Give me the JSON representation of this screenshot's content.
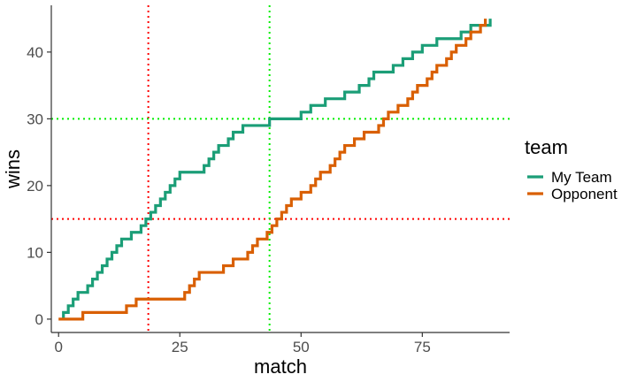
{
  "chart_data": {
    "type": "line",
    "line_shape": "step",
    "xlabel": "match",
    "ylabel": "wins",
    "xlim": [
      -1.5,
      93
    ],
    "ylim": [
      -2,
      47
    ],
    "x_ticks": [
      0,
      25,
      50,
      75
    ],
    "y_ticks": [
      0,
      10,
      20,
      30,
      40
    ],
    "grid": false,
    "legend": {
      "title": "team",
      "position": "right"
    },
    "series": [
      {
        "name": "My Team",
        "color": "#1b9e77",
        "points": [
          [
            1,
            0
          ],
          [
            1,
            1
          ],
          [
            2,
            1
          ],
          [
            2,
            2
          ],
          [
            3,
            2
          ],
          [
            3,
            3
          ],
          [
            4,
            3
          ],
          [
            4,
            4
          ],
          [
            6,
            4
          ],
          [
            6,
            5
          ],
          [
            7,
            5
          ],
          [
            7,
            6
          ],
          [
            8,
            6
          ],
          [
            8,
            7
          ],
          [
            9,
            7
          ],
          [
            9,
            8
          ],
          [
            10,
            8
          ],
          [
            10,
            9
          ],
          [
            11,
            9
          ],
          [
            11,
            10
          ],
          [
            12,
            10
          ],
          [
            12,
            11
          ],
          [
            13,
            11
          ],
          [
            13,
            12
          ],
          [
            15,
            12
          ],
          [
            15,
            13
          ],
          [
            17,
            13
          ],
          [
            17,
            14
          ],
          [
            18,
            14
          ],
          [
            18,
            15
          ],
          [
            19,
            15
          ],
          [
            19,
            16
          ],
          [
            20,
            16
          ],
          [
            20,
            17
          ],
          [
            21,
            17
          ],
          [
            21,
            18
          ],
          [
            22,
            18
          ],
          [
            22,
            19
          ],
          [
            23,
            19
          ],
          [
            23,
            20
          ],
          [
            24,
            20
          ],
          [
            24,
            21
          ],
          [
            25,
            21
          ],
          [
            25,
            22
          ],
          [
            30,
            22
          ],
          [
            30,
            23
          ],
          [
            31,
            23
          ],
          [
            31,
            24
          ],
          [
            32,
            24
          ],
          [
            32,
            25
          ],
          [
            33,
            25
          ],
          [
            33,
            26
          ],
          [
            35,
            26
          ],
          [
            35,
            27
          ],
          [
            36,
            27
          ],
          [
            36,
            28
          ],
          [
            38,
            28
          ],
          [
            38,
            29
          ],
          [
            43.5,
            29
          ],
          [
            43.5,
            30
          ],
          [
            50,
            30
          ],
          [
            50,
            31
          ],
          [
            52,
            31
          ],
          [
            52,
            32
          ],
          [
            55,
            32
          ],
          [
            55,
            33
          ],
          [
            59,
            33
          ],
          [
            59,
            34
          ],
          [
            62,
            34
          ],
          [
            62,
            35
          ],
          [
            64,
            35
          ],
          [
            64,
            36
          ],
          [
            65,
            36
          ],
          [
            65,
            37
          ],
          [
            69,
            37
          ],
          [
            69,
            38
          ],
          [
            71,
            38
          ],
          [
            71,
            39
          ],
          [
            73,
            39
          ],
          [
            73,
            40
          ],
          [
            75,
            40
          ],
          [
            75,
            41
          ],
          [
            78,
            41
          ],
          [
            78,
            42
          ],
          [
            83,
            42
          ],
          [
            83,
            43
          ],
          [
            85,
            43
          ],
          [
            85,
            44
          ],
          [
            89,
            44
          ],
          [
            89,
            45
          ]
        ]
      },
      {
        "name": "Opponent",
        "color": "#d95f02",
        "points": [
          [
            0,
            0
          ],
          [
            5,
            0
          ],
          [
            5,
            1
          ],
          [
            14,
            1
          ],
          [
            14,
            2
          ],
          [
            16,
            2
          ],
          [
            16,
            3
          ],
          [
            26,
            3
          ],
          [
            26,
            4
          ],
          [
            27,
            4
          ],
          [
            27,
            5
          ],
          [
            28,
            5
          ],
          [
            28,
            6
          ],
          [
            29,
            6
          ],
          [
            29,
            7
          ],
          [
            34,
            7
          ],
          [
            34,
            8
          ],
          [
            36,
            8
          ],
          [
            36,
            9
          ],
          [
            39,
            9
          ],
          [
            39,
            10
          ],
          [
            40,
            10
          ],
          [
            40,
            11
          ],
          [
            41,
            11
          ],
          [
            41,
            12
          ],
          [
            43,
            12
          ],
          [
            43,
            13
          ],
          [
            44,
            13
          ],
          [
            44,
            14
          ],
          [
            45,
            14
          ],
          [
            45,
            15
          ],
          [
            46,
            15
          ],
          [
            46,
            16
          ],
          [
            47,
            16
          ],
          [
            47,
            17
          ],
          [
            48,
            17
          ],
          [
            48,
            18
          ],
          [
            50,
            18
          ],
          [
            50,
            19
          ],
          [
            52,
            19
          ],
          [
            52,
            20
          ],
          [
            53,
            20
          ],
          [
            53,
            21
          ],
          [
            54,
            21
          ],
          [
            54,
            22
          ],
          [
            56,
            22
          ],
          [
            56,
            23
          ],
          [
            57,
            23
          ],
          [
            57,
            24
          ],
          [
            58,
            24
          ],
          [
            58,
            25
          ],
          [
            59,
            25
          ],
          [
            59,
            26
          ],
          [
            61,
            26
          ],
          [
            61,
            27
          ],
          [
            63,
            27
          ],
          [
            63,
            28
          ],
          [
            66,
            28
          ],
          [
            66,
            29
          ],
          [
            67,
            29
          ],
          [
            67,
            30
          ],
          [
            68,
            30
          ],
          [
            68,
            31
          ],
          [
            70,
            31
          ],
          [
            70,
            32
          ],
          [
            72,
            32
          ],
          [
            72,
            33
          ],
          [
            73,
            33
          ],
          [
            73,
            34
          ],
          [
            74,
            34
          ],
          [
            74,
            35
          ],
          [
            76,
            35
          ],
          [
            76,
            36
          ],
          [
            77,
            36
          ],
          [
            77,
            37
          ],
          [
            78,
            37
          ],
          [
            78,
            38
          ],
          [
            80,
            38
          ],
          [
            80,
            39
          ],
          [
            81,
            39
          ],
          [
            81,
            40
          ],
          [
            82,
            40
          ],
          [
            82,
            41
          ],
          [
            84,
            41
          ],
          [
            84,
            42
          ],
          [
            85,
            42
          ],
          [
            85,
            43
          ],
          [
            87,
            43
          ],
          [
            87,
            44
          ],
          [
            88,
            44
          ],
          [
            88,
            45
          ]
        ]
      }
    ],
    "reference_lines": [
      {
        "orientation": "vertical",
        "value": 18.5,
        "color": "#ff0000"
      },
      {
        "orientation": "horizontal",
        "value": 15,
        "color": "#ff0000"
      },
      {
        "orientation": "vertical",
        "value": 43.5,
        "color": "#00ee00"
      },
      {
        "orientation": "horizontal",
        "value": 30,
        "color": "#00ee00"
      }
    ]
  }
}
